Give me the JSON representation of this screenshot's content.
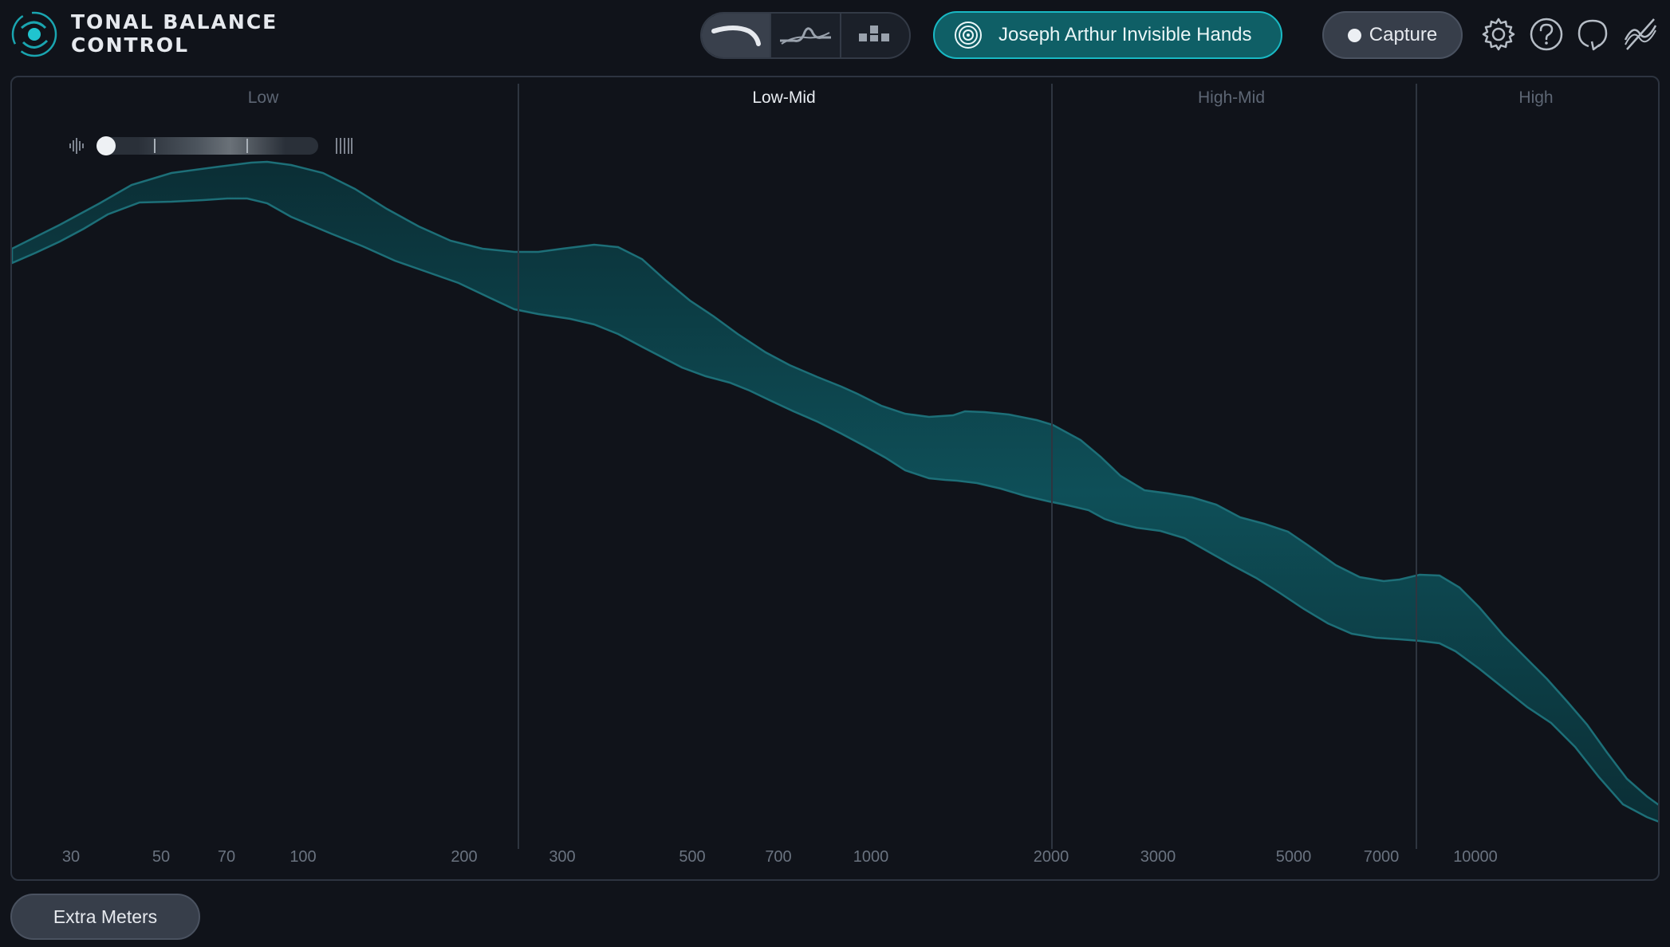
{
  "app": {
    "logo_line1": "TONAL BALANCE",
    "logo_line2": "CONTROL"
  },
  "header": {
    "view_modes": [
      {
        "icon": "broad-curve-icon",
        "active": true
      },
      {
        "icon": "fine-curve-icon",
        "active": false
      },
      {
        "icon": "bars-icon",
        "active": false
      }
    ],
    "target_label": "Joseph Arthur Invisible Hands",
    "capture_label": "Capture",
    "icons": [
      "gear-icon",
      "help-icon",
      "loop-icon",
      "bypass-icon"
    ]
  },
  "bands": [
    {
      "label": "Low",
      "active": false
    },
    {
      "label": "Low-Mid",
      "active": true
    },
    {
      "label": "High-Mid",
      "active": false
    },
    {
      "label": "High",
      "active": false
    }
  ],
  "frequency_labels": [
    "30",
    "50",
    "70",
    "100",
    "200",
    "300",
    "500",
    "700",
    "1000",
    "2000",
    "3000",
    "5000",
    "7000",
    "10000"
  ],
  "crest_factor": {
    "level": 0.0
  },
  "footer": {
    "extra_meters_label": "Extra Meters"
  },
  "colors": {
    "accent": "#19b9c4",
    "band_fill_center": "#0d4a53",
    "band_stroke": "#1d6f78"
  }
}
